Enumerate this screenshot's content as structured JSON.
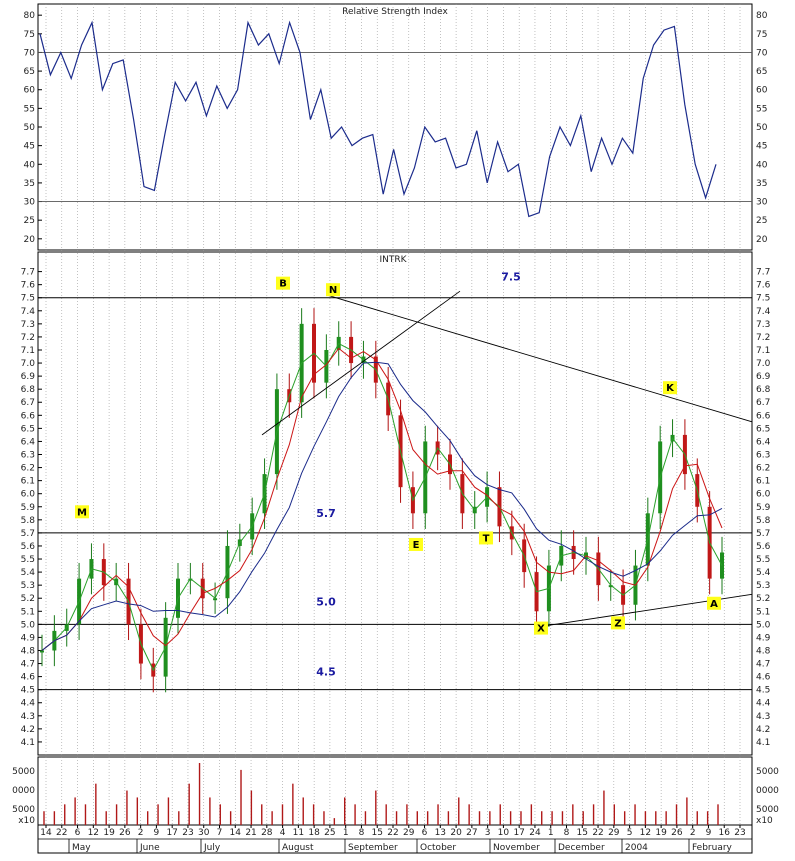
{
  "chart_data": [
    {
      "type": "line",
      "title": "Relative Strength Index",
      "ylim": [
        17,
        83
      ],
      "yticks": [
        20,
        25,
        30,
        35,
        40,
        45,
        50,
        55,
        60,
        65,
        70,
        75,
        80
      ],
      "reference_lines": [
        30,
        70
      ],
      "series": [
        {
          "values": [
            75,
            64,
            70,
            63,
            72,
            78,
            60,
            67,
            68,
            52,
            34,
            33,
            48,
            62,
            57,
            62,
            53,
            61,
            55,
            60,
            78,
            72,
            75,
            67,
            78,
            70,
            52,
            60,
            47,
            50,
            45,
            47,
            48,
            32,
            44,
            32,
            39,
            50,
            46,
            47,
            39,
            40,
            49,
            35,
            46,
            38,
            40,
            26,
            27,
            42,
            50,
            45,
            53,
            38,
            47,
            40,
            47,
            43,
            63,
            72,
            76,
            77,
            56,
            40,
            31,
            40
          ]
        }
      ]
    },
    {
      "type": "line",
      "title": "INTRK",
      "ylim": [
        4.0,
        7.85
      ],
      "yticks": [
        4.1,
        4.2,
        4.3,
        4.4,
        4.5,
        4.6,
        4.7,
        4.8,
        4.9,
        5.0,
        5.1,
        5.2,
        5.3,
        5.4,
        5.5,
        5.6,
        5.7,
        5.8,
        5.9,
        6.0,
        6.1,
        6.2,
        6.3,
        6.4,
        6.5,
        6.6,
        6.7,
        6.8,
        6.9,
        7.0,
        7.1,
        7.2,
        7.3,
        7.4,
        7.5,
        7.6,
        7.7
      ],
      "price_close": [
        4.8,
        4.95,
        5.0,
        5.35,
        5.5,
        5.3,
        5.35,
        5.0,
        4.7,
        4.6,
        5.05,
        5.35,
        5.35,
        5.2,
        5.2,
        5.6,
        5.65,
        5.85,
        6.15,
        6.8,
        6.7,
        7.3,
        6.85,
        7.1,
        7.2,
        7.0,
        7.05,
        6.85,
        6.6,
        6.05,
        5.85,
        6.4,
        6.3,
        6.15,
        5.85,
        5.9,
        6.05,
        5.75,
        5.65,
        5.4,
        5.1,
        5.45,
        5.6,
        5.5,
        5.55,
        5.3,
        5.3,
        5.15,
        5.45,
        5.85,
        6.4,
        6.45,
        6.15,
        5.9,
        5.35,
        5.55
      ],
      "horizontal_levels": [
        7.5,
        5.7,
        5.0,
        4.5
      ],
      "level_labels": [
        "7.5",
        "5.7",
        "5.0",
        "4.5"
      ],
      "points": [
        {
          "label": "M",
          "value": 5.85
        },
        {
          "label": "B",
          "value": 7.6
        },
        {
          "label": "N",
          "value": 7.55
        },
        {
          "label": "E",
          "value": 5.6
        },
        {
          "label": "T",
          "value": 5.65
        },
        {
          "label": "X",
          "value": 4.96
        },
        {
          "label": "Z",
          "value": 5.0
        },
        {
          "label": "K",
          "value": 6.8
        },
        {
          "label": "A",
          "value": 5.15
        }
      ]
    },
    {
      "type": "bar",
      "title": "",
      "yticks": [
        "5000",
        "0000",
        "5000",
        "x10"
      ],
      "volume": [
        2,
        2,
        3,
        4,
        3,
        6,
        2,
        3,
        5,
        4,
        2,
        3,
        4,
        2,
        6,
        9,
        4,
        3,
        2,
        8,
        5,
        3,
        2,
        3,
        6,
        4,
        3,
        2,
        1,
        4,
        3,
        2,
        5,
        3,
        2,
        3,
        2,
        2,
        3,
        2,
        4,
        3,
        2,
        2,
        3,
        2,
        2,
        3,
        2,
        2,
        2,
        3,
        2,
        3,
        5,
        3,
        2,
        3,
        2,
        2,
        2,
        3,
        4,
        2,
        2,
        3
      ]
    }
  ],
  "x_axis": {
    "day_labels": [
      "14",
      "22",
      "6",
      "12",
      "19",
      "26",
      "2",
      "9",
      "17",
      "23",
      "30",
      "7",
      "14",
      "21",
      "28",
      "4",
      "11",
      "18",
      "25",
      "1",
      "8",
      "15",
      "22",
      "29",
      "6",
      "13",
      "20",
      "27",
      "3",
      "10",
      "17",
      "24",
      "1",
      "8",
      "15",
      "22",
      "29",
      "5",
      "12",
      "19",
      "26",
      "2",
      "9",
      "16",
      "23"
    ],
    "month_labels": [
      "May",
      "June",
      "July",
      "August",
      "September",
      "October",
      "November",
      "December",
      "2004",
      "February"
    ]
  }
}
